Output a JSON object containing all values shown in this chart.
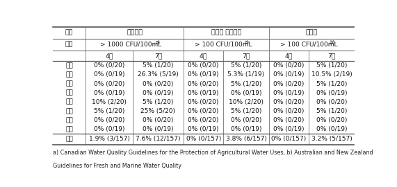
{
  "header_row1": [
    "구분",
    "대장균군",
    "분원성 대장균군",
    "대장균"
  ],
  "header_row2_col0": "기준",
  "header_row2": [
    "> 1000 CFU/100mL",
    "a)",
    "> 100 CFU/100mL",
    "a)",
    "> 100 CFU/100mL",
    "b)"
  ],
  "header_row3": [
    "4월",
    "7월",
    "4월",
    "7월",
    "4월",
    "7월"
  ],
  "rows": [
    [
      "경기",
      "0% (0/20)",
      "5% (1/20)",
      "0% (0/20)",
      "5% (1/20)",
      "0% (0/20)",
      "5% (1/20)"
    ],
    [
      "강원",
      "0% (0/19)",
      "26.3% (5/19)",
      "0% (0/19)",
      "5.3% (1/19)",
      "0% (0/19)",
      "10.5% (2/19)"
    ],
    [
      "충북",
      "0% (0/20)",
      "0% (0/20)",
      "0% (0/20)",
      "5% (1/20)",
      "0% (0/20)",
      "5% (1/20)"
    ],
    [
      "충남",
      "0% (0/19)",
      "0% (0/19)",
      "0% (0/19)",
      "0% (0/19)",
      "0% (0/19)",
      "0% (0/19)"
    ],
    [
      "전북",
      "10% (2/20)",
      "5% (1/20)",
      "0% (0/20)",
      "10% (2/20)",
      "0% (0/20)",
      "0% (0/20)"
    ],
    [
      "전남",
      "5% (1/20)",
      "25% (5/20)",
      "0% (0/20)",
      "5% (1/20)",
      "0% (0/20)",
      "5% (1/20)"
    ],
    [
      "경북",
      "0% (0/20)",
      "0% (0/20)",
      "0% (0/20)",
      "0% (0/20)",
      "0% (0/20)",
      "0% (0/20)"
    ],
    [
      "경남",
      "0% (0/19)",
      "0% (0/19)",
      "0% (0/19)",
      "0% (0/19)",
      "0% (0/19)",
      "0% (0/19)"
    ]
  ],
  "total_row": [
    "합계",
    "1.9% (3/157)",
    "7.6% (12/157)",
    "0% (0/157)",
    "3.8% (6/157)",
    "0% (0/157)",
    "3.2% (5/157)"
  ],
  "footnote_line1": "a) Canadian Water Quality Guidelines for the Protection of Agricultural Water Uses, b) Australian and New Zealand",
  "footnote_line2": "Guidelines for Fresh and Marine Water Quality",
  "bg_color": "#ffffff",
  "line_color": "#555555",
  "font_size": 6.5,
  "footnote_size": 5.8
}
